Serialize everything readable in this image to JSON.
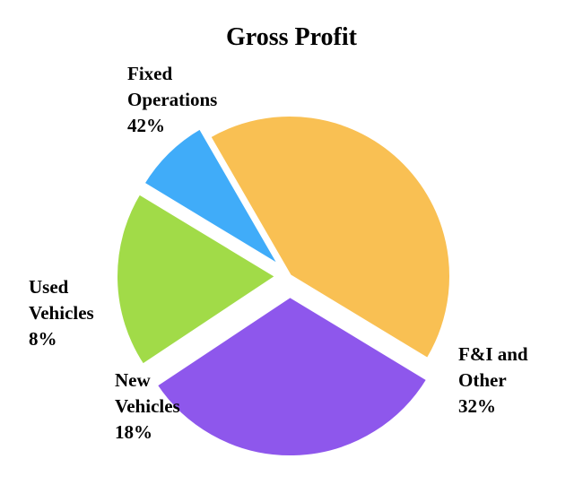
{
  "chart_data": {
    "type": "pie",
    "title": "Gross Profit",
    "slices": [
      {
        "name": "Fixed Operations",
        "label_lines": [
          "Fixed",
          "Operations",
          "42%"
        ],
        "value": 42,
        "color": "#F9C053"
      },
      {
        "name": "F&I and Other",
        "label_lines": [
          "F&I and",
          "Other",
          "32%"
        ],
        "value": 32,
        "color": "#8E57EC"
      },
      {
        "name": "New Vehicles",
        "label_lines": [
          "New",
          "Vehicles",
          "18%"
        ],
        "value": 18,
        "color": "#A1DB48"
      },
      {
        "name": "Used Vehicles",
        "label_lines": [
          "Used",
          "Vehicles",
          "8%"
        ],
        "value": 8,
        "color": "#40ACF9"
      }
    ],
    "legend": "none"
  }
}
